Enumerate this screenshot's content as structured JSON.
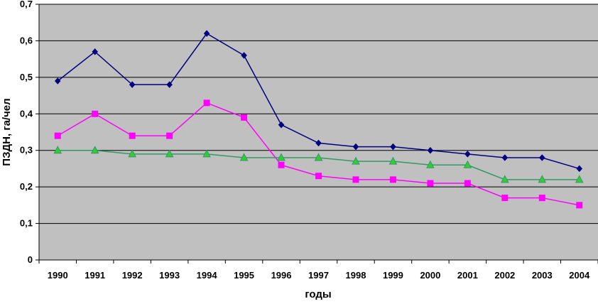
{
  "chart_data": {
    "type": "line",
    "title": "",
    "xlabel": "годы",
    "ylabel": "ПЗДН, га/чел",
    "categories": [
      "1990",
      "1991",
      "1992",
      "1993",
      "1994",
      "1995",
      "1996",
      "1997",
      "1998",
      "1999",
      "2000",
      "2001",
      "2002",
      "2003",
      "2004"
    ],
    "ylim": [
      0,
      0.7
    ],
    "y_ticks": [
      "0",
      "0,1",
      "0,2",
      "0,3",
      "0,4",
      "0,5",
      "0,6",
      "0,7"
    ],
    "grid": true,
    "legend": "none",
    "plot_background": "#c0c0c0",
    "series": [
      {
        "color": "#000080",
        "marker": "diamond",
        "values": [
          0.49,
          0.57,
          0.48,
          0.48,
          0.62,
          0.56,
          0.37,
          0.32,
          0.31,
          0.31,
          0.3,
          0.29,
          0.28,
          0.28,
          0.25
        ]
      },
      {
        "color": "#ff00ff",
        "marker": "square",
        "values": [
          0.34,
          0.4,
          0.34,
          0.34,
          0.43,
          0.39,
          0.26,
          0.23,
          0.22,
          0.22,
          0.21,
          0.21,
          0.17,
          0.17,
          0.15
        ]
      },
      {
        "color": "#339966",
        "marker_fill": "#33cc33",
        "marker": "triangle",
        "values": [
          0.3,
          0.3,
          0.29,
          0.29,
          0.29,
          0.28,
          0.28,
          0.28,
          0.27,
          0.27,
          0.26,
          0.26,
          0.22,
          0.22,
          0.22
        ]
      }
    ]
  }
}
